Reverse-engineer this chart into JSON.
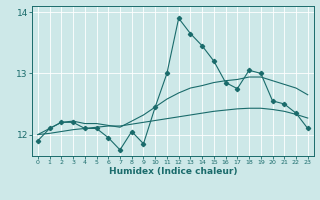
{
  "x_values": [
    0,
    1,
    2,
    3,
    4,
    5,
    6,
    7,
    8,
    9,
    10,
    11,
    12,
    13,
    14,
    15,
    16,
    17,
    18,
    19,
    20,
    21,
    22,
    23
  ],
  "line1": [
    11.9,
    12.1,
    12.2,
    12.2,
    12.1,
    12.1,
    11.95,
    11.75,
    12.05,
    11.85,
    12.45,
    13.0,
    13.9,
    13.65,
    13.45,
    13.2,
    12.85,
    12.75,
    13.05,
    13.0,
    12.55,
    12.5,
    12.35,
    12.1
  ],
  "line2": [
    12.0,
    12.1,
    12.2,
    12.22,
    12.18,
    12.18,
    12.15,
    12.12,
    12.22,
    12.32,
    12.45,
    12.58,
    12.68,
    12.76,
    12.8,
    12.85,
    12.88,
    12.9,
    12.94,
    12.94,
    12.88,
    12.82,
    12.76,
    12.65
  ],
  "line3": [
    12.0,
    12.02,
    12.05,
    12.08,
    12.1,
    12.12,
    12.14,
    12.14,
    12.17,
    12.2,
    12.23,
    12.26,
    12.29,
    12.32,
    12.35,
    12.38,
    12.4,
    12.42,
    12.43,
    12.43,
    12.41,
    12.38,
    12.33,
    12.27
  ],
  "line_color": "#1a6b6b",
  "bg_color": "#cde8e8",
  "grid_color": "#ffffff",
  "xlabel": "Humidex (Indice chaleur)",
  "ylim": [
    11.65,
    14.1
  ],
  "xlim": [
    -0.5,
    23.5
  ],
  "yticks": [
    12,
    13,
    14
  ],
  "xticks": [
    0,
    1,
    2,
    3,
    4,
    5,
    6,
    7,
    8,
    9,
    10,
    11,
    12,
    13,
    14,
    15,
    16,
    17,
    18,
    19,
    20,
    21,
    22,
    23
  ]
}
